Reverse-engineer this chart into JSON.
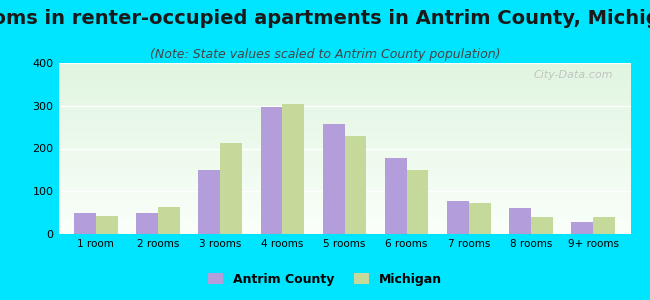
{
  "title": "Rooms in renter-occupied apartments in Antrim County, Michigan",
  "subtitle": "(Note: State values scaled to Antrim County population)",
  "categories": [
    "1 room",
    "2 rooms",
    "3 rooms",
    "4 rooms",
    "5 rooms",
    "6 rooms",
    "7 rooms",
    "8 rooms",
    "9+ rooms"
  ],
  "antrim_values": [
    50,
    50,
    150,
    298,
    258,
    178,
    78,
    60,
    27
  ],
  "michigan_values": [
    43,
    62,
    212,
    305,
    230,
    150,
    73,
    40,
    40
  ],
  "antrim_color": "#b39ddb",
  "michigan_color": "#c5d99b",
  "background_color": "#00e5ff",
  "ylim": [
    0,
    400
  ],
  "yticks": [
    0,
    100,
    200,
    300,
    400
  ],
  "bar_width": 0.35,
  "title_fontsize": 14,
  "subtitle_fontsize": 9,
  "legend_labels": [
    "Antrim County",
    "Michigan"
  ],
  "watermark": "City-Data.com"
}
